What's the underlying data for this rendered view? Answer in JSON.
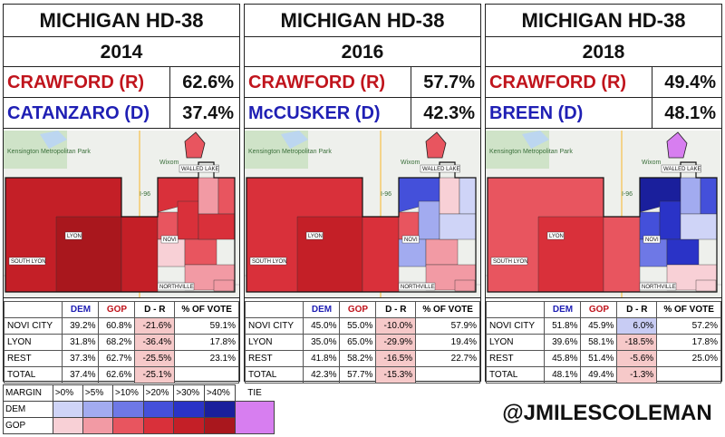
{
  "colors": {
    "rep_text": "#c0141c",
    "dem_text": "#1f1fb4",
    "gop_scale": [
      "#f8d0d6",
      "#f29aa4",
      "#e8555f",
      "#d9303a",
      "#c41f27",
      "#a9171d"
    ],
    "dem_scale": [
      "#cfd4f7",
      "#a2abf0",
      "#6e78e6",
      "#4450da",
      "#2a33c7",
      "#1a1f9c"
    ],
    "tie": "#d77ef0"
  },
  "panels": [
    {
      "title": "MICHIGAN HD-38",
      "year": "2014",
      "rep": {
        "name": "CRAWFORD (R)",
        "pct": "62.6%"
      },
      "dem": {
        "name": "CATANZARO (D)",
        "pct": "37.4%"
      },
      "map": {
        "place_labels": [
          "Kensington Metropolitan Park",
          "Wixom"
        ],
        "labels": [
          "WALLED LAKE",
          "LYON",
          "NOVI",
          "SOUTH LYON",
          "NORTHVILLE"
        ],
        "road": "I-96"
      },
      "table": {
        "headers": [
          "DEM",
          "GOP",
          "D - R",
          "% OF VOTE"
        ],
        "rows": [
          {
            "name": "NOVI CITY",
            "dem": "39.2%",
            "gop": "60.8%",
            "dr": "-21.6%",
            "vote": "59.1%",
            "dr_lean": "R"
          },
          {
            "name": "LYON",
            "dem": "31.8%",
            "gop": "68.2%",
            "dr": "-36.4%",
            "vote": "17.8%",
            "dr_lean": "R"
          },
          {
            "name": "REST",
            "dem": "37.3%",
            "gop": "62.7%",
            "dr": "-25.5%",
            "vote": "23.1%",
            "dr_lean": "R"
          },
          {
            "name": "TOTAL",
            "dem": "37.4%",
            "gop": "62.6%",
            "dr": "-25.1%",
            "vote": "",
            "dr_lean": "R"
          }
        ]
      }
    },
    {
      "title": "MICHIGAN HD-38",
      "year": "2016",
      "rep": {
        "name": "CRAWFORD (R)",
        "pct": "57.7%"
      },
      "dem": {
        "name": "McCUSKER (D)",
        "pct": "42.3%"
      },
      "map": {
        "place_labels": [
          "Kensington Metropolitan Park",
          "Wixom"
        ],
        "labels": [
          "WALLED LAKE",
          "LYON",
          "NOVI",
          "SOUTH LYON",
          "NORTHVILLE"
        ],
        "road": "I-96"
      },
      "table": {
        "headers": [
          "DEM",
          "GOP",
          "D - R",
          "% OF VOTE"
        ],
        "rows": [
          {
            "name": "NOVI CITY",
            "dem": "45.0%",
            "gop": "55.0%",
            "dr": "-10.0%",
            "vote": "57.9%",
            "dr_lean": "R"
          },
          {
            "name": "LYON",
            "dem": "35.0%",
            "gop": "65.0%",
            "dr": "-29.9%",
            "vote": "19.4%",
            "dr_lean": "R"
          },
          {
            "name": "REST",
            "dem": "41.8%",
            "gop": "58.2%",
            "dr": "-16.5%",
            "vote": "22.7%",
            "dr_lean": "R"
          },
          {
            "name": "TOTAL",
            "dem": "42.3%",
            "gop": "57.7%",
            "dr": "-15.3%",
            "vote": "",
            "dr_lean": "R"
          }
        ]
      }
    },
    {
      "title": "MICHIGAN HD-38",
      "year": "2018",
      "rep": {
        "name": "CRAWFORD (R)",
        "pct": "49.4%"
      },
      "dem": {
        "name": "BREEN (D)",
        "pct": "48.1%"
      },
      "map": {
        "place_labels": [
          "Kensington Metropolitan Park",
          "Wixom"
        ],
        "labels": [
          "WALLED LAKE",
          "LYON",
          "NOVI",
          "SOUTH LYON",
          "NORTHVILLE"
        ],
        "road": "I-96"
      },
      "table": {
        "headers": [
          "DEM",
          "GOP",
          "D - R",
          "% OF VOTE"
        ],
        "rows": [
          {
            "name": "NOVI CITY",
            "dem": "51.8%",
            "gop": "45.9%",
            "dr": "6.0%",
            "vote": "57.2%",
            "dr_lean": "D"
          },
          {
            "name": "LYON",
            "dem": "39.6%",
            "gop": "58.1%",
            "dr": "-18.5%",
            "vote": "17.8%",
            "dr_lean": "R"
          },
          {
            "name": "REST",
            "dem": "45.8%",
            "gop": "51.4%",
            "dr": "-5.6%",
            "vote": "25.0%",
            "dr_lean": "R"
          },
          {
            "name": "TOTAL",
            "dem": "48.1%",
            "gop": "49.4%",
            "dr": "-1.3%",
            "vote": "",
            "dr_lean": "R"
          }
        ]
      }
    }
  ],
  "legend": {
    "margin_label": "MARGIN",
    "bins": [
      ">0%",
      ">5%",
      ">10%",
      ">20%",
      ">30%",
      ">40%"
    ],
    "dem_label": "DEM",
    "gop_label": "GOP",
    "tie_label": "TIE"
  },
  "handle": "@JMILESCOLEMAN"
}
